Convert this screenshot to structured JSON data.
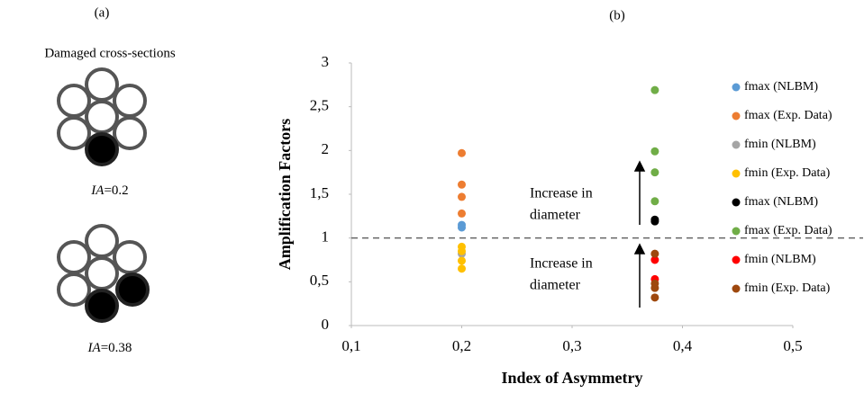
{
  "panel_a": {
    "label": "(a)",
    "heading": "Damaged cross-sections",
    "sections": [
      {
        "symbol": "IA",
        "value_text": "=0.2"
      },
      {
        "symbol": "IA",
        "value_text": "=0.38"
      }
    ]
  },
  "chart_data": {
    "type": "scatter",
    "panel_label": "(b)",
    "x_label": "Index of Asymmetry",
    "y_label": "Amplification Factors",
    "xlim": [
      0.1,
      0.5
    ],
    "ylim": [
      0,
      3
    ],
    "xticks": [
      {
        "value": 0.1,
        "label": "0,1"
      },
      {
        "value": 0.2,
        "label": "0,2"
      },
      {
        "value": 0.3,
        "label": "0,3"
      },
      {
        "value": 0.4,
        "label": "0,4"
      },
      {
        "value": 0.5,
        "label": "0,5"
      }
    ],
    "yticks": [
      0,
      {
        "value": 0.5,
        "label": "0,5"
      },
      1,
      {
        "value": 1.5,
        "label": "1,5"
      },
      2,
      {
        "value": 2.5,
        "label": "2,5"
      },
      3
    ],
    "reference_line": 1,
    "series": [
      {
        "name": "fmax (NLBM)",
        "color": "#5b9bd5",
        "x": [
          0.2,
          0.2
        ],
        "values": [
          1.12,
          1.15
        ]
      },
      {
        "name": "fmax (Exp. Data)",
        "color": "#ed7d31",
        "x": [
          0.2,
          0.2,
          0.2,
          0.2
        ],
        "values": [
          1.97,
          1.61,
          1.47,
          1.28
        ]
      },
      {
        "name": "fmin (NLBM)",
        "color": "#a5a5a5",
        "x": [
          0.2
        ],
        "values": [
          0.82
        ]
      },
      {
        "name": "fmin (Exp. Data)",
        "color": "#ffc000",
        "x": [
          0.2,
          0.2,
          0.2,
          0.2
        ],
        "values": [
          0.9,
          0.85,
          0.74,
          0.65
        ]
      },
      {
        "name": "fmax (NLBM)",
        "color": "#000000",
        "x": [
          0.375,
          0.375
        ],
        "values": [
          1.19,
          1.21
        ]
      },
      {
        "name": "fmax (Exp. Data)",
        "color": "#70ad47",
        "x": [
          0.375,
          0.375,
          0.375,
          0.375
        ],
        "values": [
          2.69,
          1.99,
          1.75,
          1.42
        ]
      },
      {
        "name": "fmin (NLBM)",
        "color": "#ff0000",
        "x": [
          0.375,
          0.375
        ],
        "values": [
          0.75,
          0.53
        ]
      },
      {
        "name": "fmin (Exp. Data)",
        "color": "#9e480e",
        "x": [
          0.375,
          0.375,
          0.375,
          0.375
        ],
        "values": [
          0.82,
          0.48,
          0.43,
          0.32
        ]
      }
    ],
    "annotations": [
      [
        "Increase in",
        "diameter"
      ],
      [
        "Increase in",
        "diameter"
      ]
    ]
  }
}
